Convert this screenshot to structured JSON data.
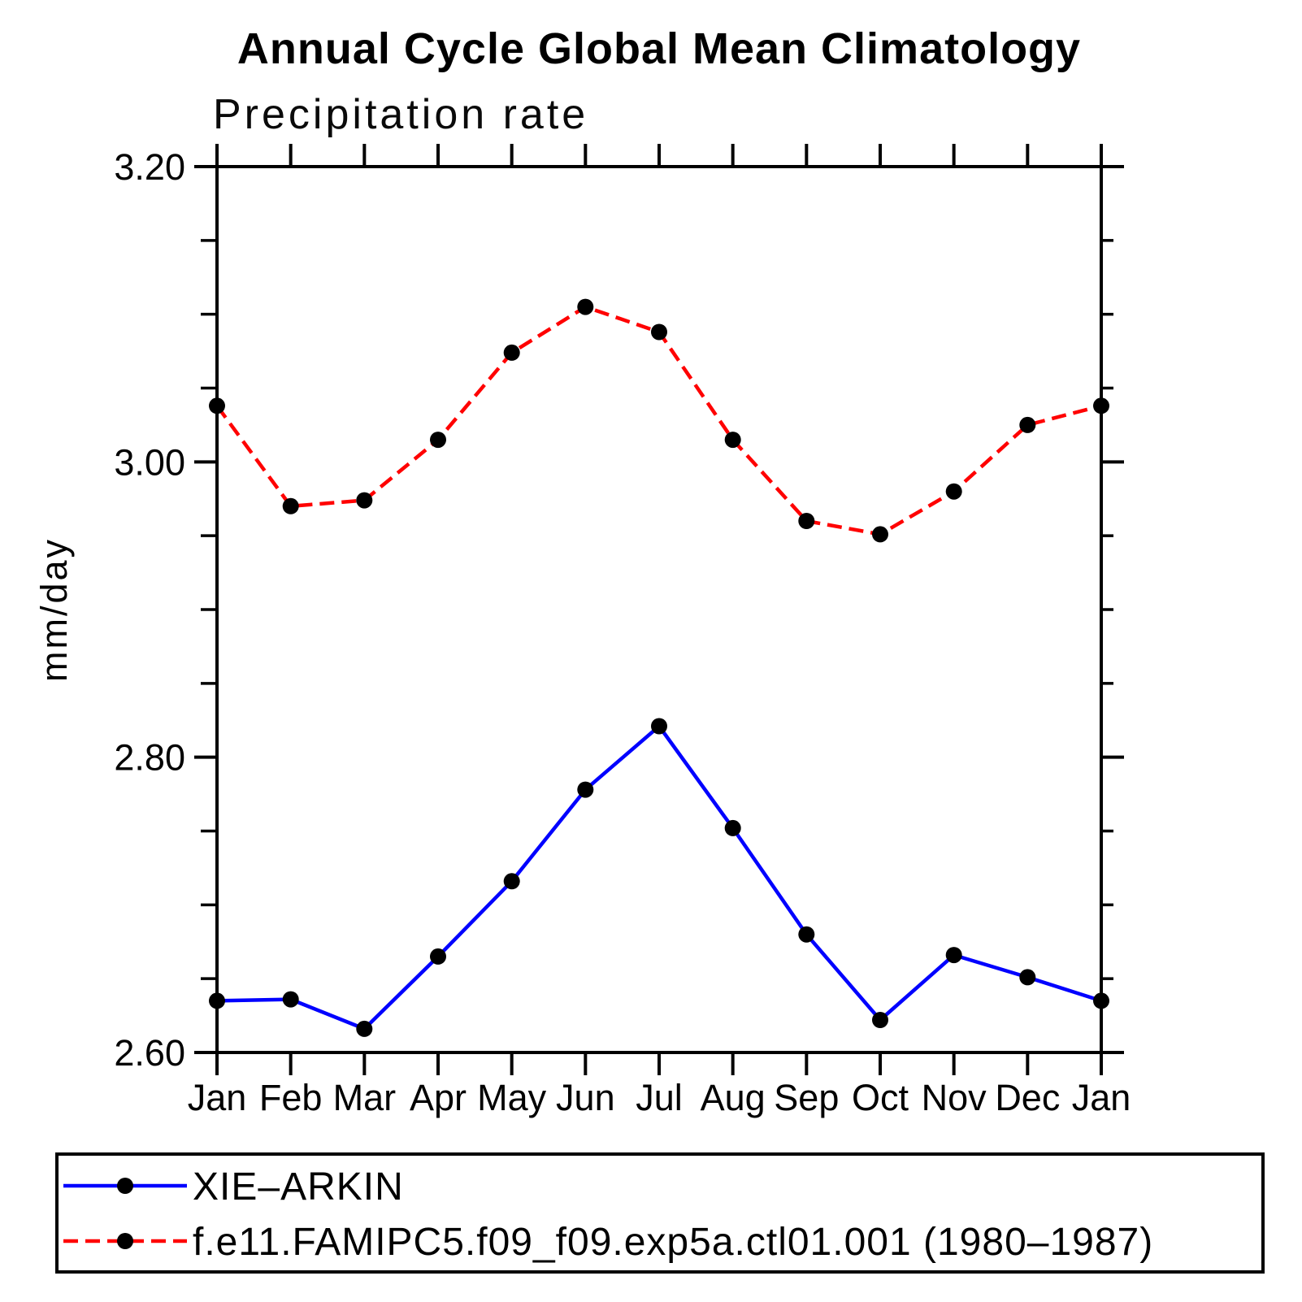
{
  "chart_data": {
    "type": "line",
    "title": "Annual Cycle Global Mean Climatology",
    "subtitle": "Precipitation rate",
    "ylabel": "mm/day",
    "categories": [
      "Jan",
      "Feb",
      "Mar",
      "Apr",
      "May",
      "Jun",
      "Jul",
      "Aug",
      "Sep",
      "Oct",
      "Nov",
      "Dec",
      "Jan"
    ],
    "ylim": [
      2.6,
      3.2
    ],
    "y_major_ticks": [
      2.6,
      2.8,
      3.0,
      3.2
    ],
    "y_major_ticklabels": [
      "2.60",
      "2.80",
      "3.00",
      "3.20"
    ],
    "y_minor_step": 0.05,
    "grid": false,
    "legend_position": "bottom-box",
    "series": [
      {
        "name": "XIE–ARKIN",
        "color": "#0000ff",
        "line_style": "solid",
        "marker": "filled-circle",
        "marker_color": "#000000",
        "values": [
          2.635,
          2.636,
          2.616,
          2.665,
          2.716,
          2.778,
          2.821,
          2.752,
          2.68,
          2.622,
          2.666,
          2.651,
          2.635
        ]
      },
      {
        "name": "f.e11.FAMIPC5.f09_f09.exp5a.ctl01.001 (1980–1987)",
        "color": "#ff0000",
        "line_style": "dashed",
        "marker": "filled-circle",
        "marker_color": "#000000",
        "values": [
          3.038,
          2.97,
          2.974,
          3.015,
          3.074,
          3.105,
          3.088,
          3.015,
          2.96,
          2.951,
          2.98,
          3.025,
          3.038
        ]
      }
    ]
  },
  "colors": {
    "axis": "#000000",
    "background": "#ffffff",
    "series1": "#0000ff",
    "series2": "#ff0000",
    "marker": "#000000"
  }
}
